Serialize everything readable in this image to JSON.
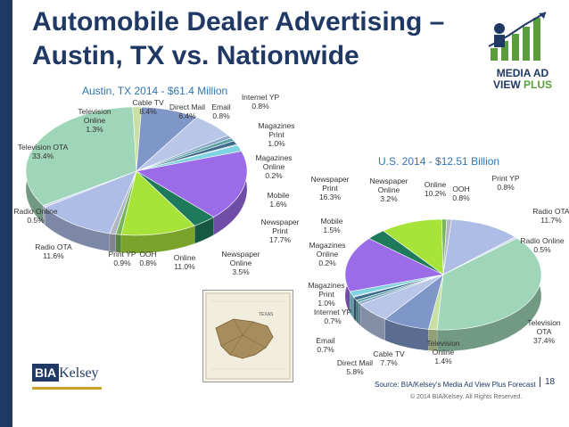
{
  "slide": {
    "title_line1": "Automobile Dealer Advertising –",
    "title_line2": "Austin, TX vs. Nationwide",
    "source": "Source: BIA/Kelsey's Media Ad View Plus Forecast",
    "copyright": "© 2014 BIA/Kelsey. All Rights Reserved.",
    "page_number": "18",
    "logo_line1": "MEDIA AD",
    "logo_line2_a": "VIEW ",
    "logo_line2_b": "PLUS",
    "footer_logo_a": "BIA",
    "footer_logo_b": "Kelsey",
    "map_label": "TEXAS"
  },
  "chart_data": [
    {
      "type": "pie",
      "title": "Austin, TX 2014 - $61.4 Million",
      "slices": [
        {
          "label": "Television Online",
          "value": 1.3,
          "color": "#c9dfa3"
        },
        {
          "label": "Cable TV",
          "value": 8.4,
          "color": "#7f96c9"
        },
        {
          "label": "Direct Mail",
          "value": 6.4,
          "color": "#b8c7e8"
        },
        {
          "label": "Email",
          "value": 0.8,
          "color": "#8aa9c9"
        },
        {
          "label": "Internet YP",
          "value": 0.8,
          "color": "#5aa1a6"
        },
        {
          "label": "Magazines Print",
          "value": 1.0,
          "color": "#3f6b8c"
        },
        {
          "label": "Magazines Online",
          "value": 0.2,
          "color": "#4d7fa8"
        },
        {
          "label": "Mobile",
          "value": 1.6,
          "color": "#7fd3e3"
        },
        {
          "label": "Newspaper Print",
          "value": 17.7,
          "color": "#9b6be8"
        },
        {
          "label": "Newspaper Online",
          "value": 3.5,
          "color": "#1e7a5a"
        },
        {
          "label": "Online",
          "value": 11.0,
          "color": "#a8e33a"
        },
        {
          "label": "OOH",
          "value": 0.8,
          "color": "#7ab55c"
        },
        {
          "label": "Print YP",
          "value": 0.9,
          "color": "#b0b8c6"
        },
        {
          "label": "Radio OTA",
          "value": 11.6,
          "color": "#aebde6"
        },
        {
          "label": "Radio Online",
          "value": 0.5,
          "color": "#c9d6ee"
        },
        {
          "label": "Television OTA",
          "value": 33.4,
          "color": "#9fd5b8"
        }
      ],
      "display_labels": [
        {
          "l1": "Television",
          "l2": "Online",
          "l3": "1.3%"
        },
        {
          "l1": "Cable TV",
          "l2": "8.4%",
          "l3": ""
        },
        {
          "l1": "Direct Mail",
          "l2": "6.4%",
          "l3": ""
        },
        {
          "l1": "Email",
          "l2": "0.8%",
          "l3": ""
        },
        {
          "l1": "Internet YP",
          "l2": "0.8%",
          "l3": ""
        },
        {
          "l1": "Magazines",
          "l2": "Print",
          "l3": "1.0%"
        },
        {
          "l1": "Magazines",
          "l2": "Online",
          "l3": "0.2%"
        },
        {
          "l1": "Mobile",
          "l2": "1.6%",
          "l3": ""
        },
        {
          "l1": "Newspaper",
          "l2": "Print",
          "l3": "17.7%"
        },
        {
          "l1": "Newspaper",
          "l2": "Online",
          "l3": "3.5%"
        },
        {
          "l1": "Online",
          "l2": "11.0%",
          "l3": ""
        },
        {
          "l1": "OOH",
          "l2": "0.8%",
          "l3": ""
        },
        {
          "l1": "Print YP",
          "l2": "0.9%",
          "l3": ""
        },
        {
          "l1": "Radio OTA",
          "l2": "11.6%",
          "l3": ""
        },
        {
          "l1": "Radio Online",
          "l2": "0.5%",
          "l3": ""
        },
        {
          "l1": "Television OTA",
          "l2": "33.4%",
          "l3": ""
        }
      ]
    },
    {
      "type": "pie",
      "title": "U.S. 2014 - $12.51 Billion",
      "slices": [
        {
          "label": "Print YP",
          "value": 0.8,
          "color": "#b0b8c6"
        },
        {
          "label": "Radio OTA",
          "value": 11.7,
          "color": "#aebde6"
        },
        {
          "label": "Radio Online",
          "value": 0.5,
          "color": "#c9d6ee"
        },
        {
          "label": "Television OTA",
          "value": 37.4,
          "color": "#9fd5b8"
        },
        {
          "label": "Television Online",
          "value": 1.4,
          "color": "#c9dfa3"
        },
        {
          "label": "Cable TV",
          "value": 7.7,
          "color": "#7f96c9"
        },
        {
          "label": "Direct Mail",
          "value": 5.8,
          "color": "#b8c7e8"
        },
        {
          "label": "Email",
          "value": 0.7,
          "color": "#8aa9c9"
        },
        {
          "label": "Internet YP",
          "value": 0.7,
          "color": "#5aa1a6"
        },
        {
          "label": "Magazines Print",
          "value": 1.0,
          "color": "#3f6b8c"
        },
        {
          "label": "Magazines Online",
          "value": 0.2,
          "color": "#4d7fa8"
        },
        {
          "label": "Mobile",
          "value": 1.5,
          "color": "#7fd3e3"
        },
        {
          "label": "Newspaper Print",
          "value": 16.3,
          "color": "#9b6be8"
        },
        {
          "label": "Newspaper Online",
          "value": 3.2,
          "color": "#1e7a5a"
        },
        {
          "label": "Online",
          "value": 10.2,
          "color": "#a8e33a"
        },
        {
          "label": "OOH",
          "value": 0.8,
          "color": "#7ab55c"
        }
      ],
      "display_labels": [
        {
          "l1": "Print YP",
          "l2": "0.8%",
          "l3": ""
        },
        {
          "l1": "Radio OTA",
          "l2": "11.7%",
          "l3": ""
        },
        {
          "l1": "Radio Online",
          "l2": "0.5%",
          "l3": ""
        },
        {
          "l1": "Television",
          "l2": "OTA",
          "l3": "37.4%"
        },
        {
          "l1": "Television",
          "l2": "Online",
          "l3": "1.4%"
        },
        {
          "l1": "Cable TV",
          "l2": "7.7%",
          "l3": ""
        },
        {
          "l1": "Direct Mail",
          "l2": "5.8%",
          "l3": ""
        },
        {
          "l1": "Email",
          "l2": "0.7%",
          "l3": ""
        },
        {
          "l1": "Internet YP",
          "l2": "0.7%",
          "l3": ""
        },
        {
          "l1": "Magazines",
          "l2": "Print",
          "l3": "1.0%"
        },
        {
          "l1": "Magazines",
          "l2": "Online",
          "l3": "0.2%"
        },
        {
          "l1": "Mobile",
          "l2": "1.5%",
          "l3": ""
        },
        {
          "l1": "Newspaper",
          "l2": "Print",
          "l3": "16.3%"
        },
        {
          "l1": "Newspaper",
          "l2": "Online",
          "l3": "3.2%"
        },
        {
          "l1": "Online",
          "l2": "10.2%",
          "l3": ""
        },
        {
          "l1": "OOH",
          "l2": "0.8%",
          "l3": ""
        }
      ]
    }
  ]
}
